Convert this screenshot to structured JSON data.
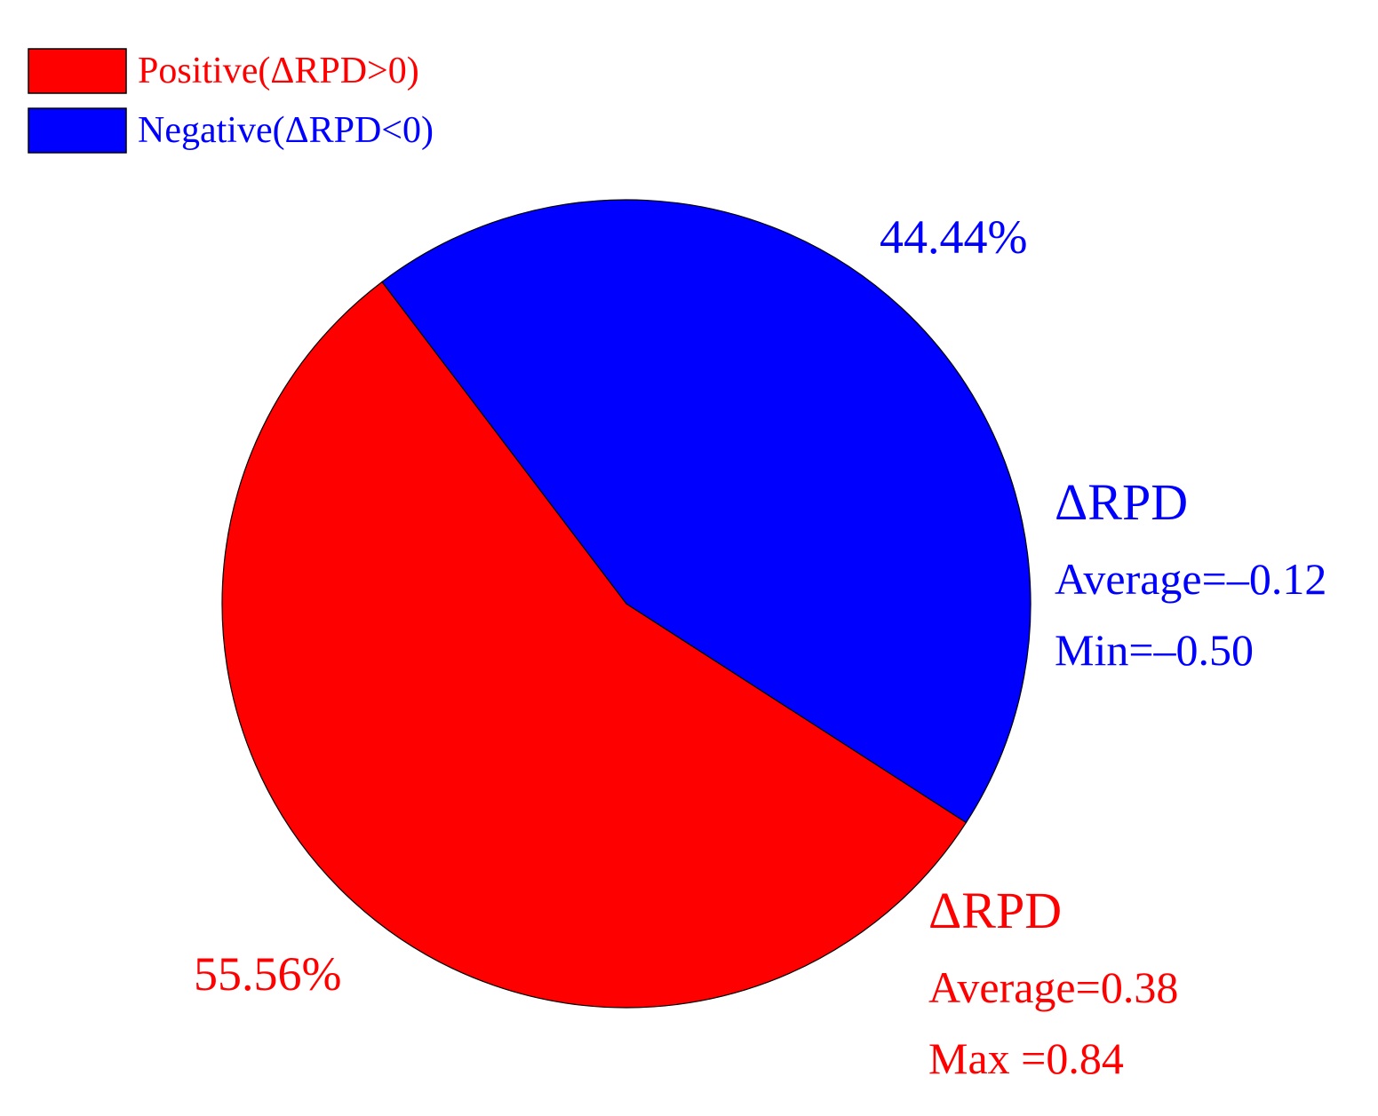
{
  "chart_data": {
    "type": "pie",
    "categories": [
      "Positive(ΔRPD>0)",
      "Negative(ΔRPD<0)"
    ],
    "values": [
      55.56,
      44.44
    ],
    "value_labels": [
      "55.56%",
      "44.44%"
    ],
    "colors": [
      "#ff0000",
      "#0000ff"
    ],
    "legend": "top-left",
    "annotations": [
      {
        "title": "ΔRPD",
        "lines": [
          "Average=0.38",
          "Max =0.84"
        ]
      },
      {
        "title": "ΔRPD",
        "lines": [
          "Average=–0.12",
          "Min=–0.50"
        ]
      }
    ]
  }
}
